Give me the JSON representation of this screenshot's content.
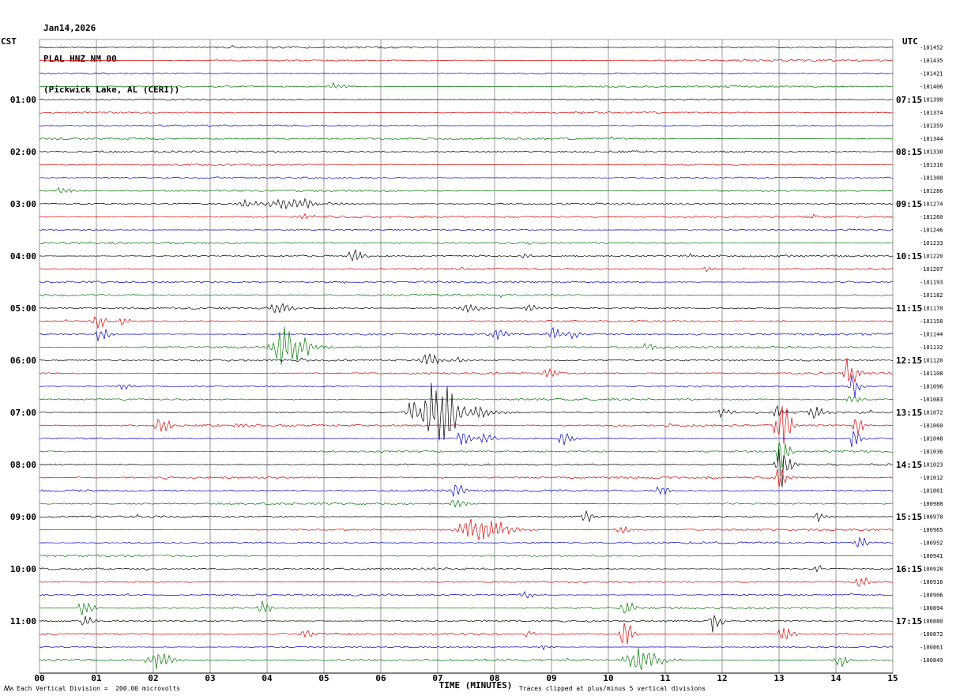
{
  "header": {
    "date": "Jan14,2026",
    "station": "PLAL HNZ NM 00",
    "location": "(Pickwick Lake, AL (CERI))"
  },
  "axes": {
    "left_header": "CST",
    "right_header": "UTC",
    "x_title": "TIME (MINUTES)"
  },
  "footer": {
    "scale_note": "Each Vertical Division =  200.00 microvolts",
    "clip_note": "Traces clipped at plus/minus 5 vertical divisions"
  },
  "colors": {
    "black": "#000000",
    "red": "#dd0000",
    "blue": "#0000cc",
    "green": "#007700",
    "grid": "#808080"
  },
  "chart_data": {
    "type": "line",
    "variant": "helicorder-seismogram",
    "title": "PLAL HNZ NM 00 — Jan14,2026 (Pickwick Lake, AL (CERI))",
    "xlabel": "TIME (MINUTES)",
    "x_range": [
      0,
      15
    ],
    "minutes_per_line": 15,
    "x_ticks": [
      "00",
      "01",
      "02",
      "03",
      "04",
      "05",
      "06",
      "07",
      "08",
      "09",
      "10",
      "11",
      "12",
      "13",
      "14",
      "15"
    ],
    "units_note": "Each Vertical Division =  200.00 microvolts",
    "clip_note": "Traces clipped at plus/minus 5 vertical divisions",
    "rows": [
      {
        "cst": "00:00",
        "color": "black",
        "offset": -101452
      },
      {
        "cst": "00:15",
        "color": "red",
        "offset": -101435
      },
      {
        "cst": "00:30",
        "color": "blue",
        "offset": -101421
      },
      {
        "cst": "00:45",
        "color": "green",
        "offset": -101406
      },
      {
        "cst": "01:00",
        "utc": "07:15",
        "color": "black",
        "offset": -101390
      },
      {
        "cst": "01:15",
        "color": "red",
        "offset": -101374
      },
      {
        "cst": "01:30",
        "color": "blue",
        "offset": -101359
      },
      {
        "cst": "01:45",
        "color": "green",
        "offset": -101344
      },
      {
        "cst": "02:00",
        "utc": "08:15",
        "color": "black",
        "offset": -101330
      },
      {
        "cst": "02:15",
        "color": "red",
        "offset": -101316
      },
      {
        "cst": "02:30",
        "color": "blue",
        "offset": -101300
      },
      {
        "cst": "02:45",
        "color": "green",
        "offset": -101286
      },
      {
        "cst": "03:00",
        "utc": "09:15",
        "color": "black",
        "offset": -101274
      },
      {
        "cst": "03:15",
        "color": "red",
        "offset": -101260
      },
      {
        "cst": "03:30",
        "color": "blue",
        "offset": -101246
      },
      {
        "cst": "03:45",
        "color": "green",
        "offset": -101233
      },
      {
        "cst": "04:00",
        "utc": "10:15",
        "color": "black",
        "offset": -101220
      },
      {
        "cst": "04:15",
        "color": "red",
        "offset": -101207
      },
      {
        "cst": "04:30",
        "color": "blue",
        "offset": -101193
      },
      {
        "cst": "04:45",
        "color": "green",
        "offset": -101182
      },
      {
        "cst": "05:00",
        "utc": "11:15",
        "color": "black",
        "offset": -101170
      },
      {
        "cst": "05:15",
        "color": "red",
        "offset": -101158
      },
      {
        "cst": "05:30",
        "color": "blue",
        "offset": -101144
      },
      {
        "cst": "05:45",
        "color": "green",
        "offset": -101132
      },
      {
        "cst": "06:00",
        "utc": "12:15",
        "color": "black",
        "offset": -101120
      },
      {
        "cst": "06:15",
        "color": "red",
        "offset": -101108
      },
      {
        "cst": "06:30",
        "color": "blue",
        "offset": -101096
      },
      {
        "cst": "06:45",
        "color": "green",
        "offset": -101083
      },
      {
        "cst": "07:00",
        "utc": "13:15",
        "color": "black",
        "offset": -101072
      },
      {
        "cst": "07:15",
        "color": "red",
        "offset": -101060
      },
      {
        "cst": "07:30",
        "color": "blue",
        "offset": -101048
      },
      {
        "cst": "07:45",
        "color": "green",
        "offset": -101036
      },
      {
        "cst": "08:00",
        "utc": "14:15",
        "color": "black",
        "offset": -101023
      },
      {
        "cst": "08:15",
        "color": "red",
        "offset": -101012
      },
      {
        "cst": "08:30",
        "color": "blue",
        "offset": -101001
      },
      {
        "cst": "08:45",
        "color": "green",
        "offset": -100988
      },
      {
        "cst": "09:00",
        "utc": "15:15",
        "color": "black",
        "offset": -100978
      },
      {
        "cst": "09:15",
        "color": "red",
        "offset": -100965
      },
      {
        "cst": "09:30",
        "color": "blue",
        "offset": -100952
      },
      {
        "cst": "09:45",
        "color": "green",
        "offset": -100941
      },
      {
        "cst": "10:00",
        "utc": "16:15",
        "color": "black",
        "offset": -100928
      },
      {
        "cst": "10:15",
        "color": "red",
        "offset": -100916
      },
      {
        "cst": "10:30",
        "color": "blue",
        "offset": -100906
      },
      {
        "cst": "10:45",
        "color": "green",
        "offset": -100894
      },
      {
        "cst": "11:00",
        "utc": "17:15",
        "color": "black",
        "offset": -100880
      },
      {
        "cst": "11:15",
        "color": "red",
        "offset": -100872
      },
      {
        "cst": "11:30",
        "color": "blue",
        "offset": -100861
      },
      {
        "cst": "11:45",
        "color": "green",
        "offset": -100849
      }
    ],
    "events": [
      {
        "row": 3,
        "min": 5.15,
        "amp": 4,
        "w": 0.1
      },
      {
        "row": 11,
        "min": 0.35,
        "amp": 3,
        "w": 0.08
      },
      {
        "row": 12,
        "min": 3.6,
        "amp": 4,
        "w": 0.12
      },
      {
        "row": 12,
        "min": 4.3,
        "amp": 6,
        "w": 0.3
      },
      {
        "row": 12,
        "min": 4.95,
        "amp": 4,
        "w": 0.1
      },
      {
        "row": 13,
        "min": 4.6,
        "amp": 3,
        "w": 0.1
      },
      {
        "row": 16,
        "min": 5.5,
        "amp": 11,
        "w": 0.06
      },
      {
        "row": 16,
        "min": 8.5,
        "amp": 3,
        "w": 0.06
      },
      {
        "row": 17,
        "min": 11.7,
        "amp": 3,
        "w": 0.06
      },
      {
        "row": 20,
        "min": 4.15,
        "amp": 7,
        "w": 0.1
      },
      {
        "row": 20,
        "min": 7.45,
        "amp": 5,
        "w": 0.12
      },
      {
        "row": 20,
        "min": 8.6,
        "amp": 4,
        "w": 0.1
      },
      {
        "row": 21,
        "min": 1.0,
        "amp": 8,
        "w": 0.07
      },
      {
        "row": 21,
        "min": 1.45,
        "amp": 5,
        "w": 0.06
      },
      {
        "row": 22,
        "min": 1.05,
        "amp": 9,
        "w": 0.07
      },
      {
        "row": 22,
        "min": 8.0,
        "amp": 9,
        "w": 0.08
      },
      {
        "row": 22,
        "min": 9.0,
        "amp": 8,
        "w": 0.08
      },
      {
        "row": 22,
        "min": 9.35,
        "amp": 5,
        "w": 0.06
      },
      {
        "row": 23,
        "min": 4.25,
        "amp": 22,
        "w": 0.18
      },
      {
        "row": 23,
        "min": 10.7,
        "amp": 6,
        "w": 0.08
      },
      {
        "row": 24,
        "min": 6.8,
        "amp": 7,
        "w": 0.1
      },
      {
        "row": 24,
        "min": 7.3,
        "amp": 4,
        "w": 0.08
      },
      {
        "row": 25,
        "min": 8.9,
        "amp": 7,
        "w": 0.07
      },
      {
        "row": 25,
        "min": 14.2,
        "amp": 16,
        "w": 0.07
      },
      {
        "row": 26,
        "min": 1.45,
        "amp": 5,
        "w": 0.06
      },
      {
        "row": 26,
        "min": 14.3,
        "amp": 18,
        "w": 0.05
      },
      {
        "row": 27,
        "min": 14.25,
        "amp": 6,
        "w": 0.06
      },
      {
        "row": 28,
        "min": 6.55,
        "amp": 12,
        "w": 0.1
      },
      {
        "row": 28,
        "min": 6.9,
        "amp": 30,
        "w": 0.13
      },
      {
        "row": 28,
        "min": 7.1,
        "amp": 22,
        "w": 0.12
      },
      {
        "row": 28,
        "min": 7.4,
        "amp": 9,
        "w": 0.2
      },
      {
        "row": 28,
        "min": 12.0,
        "amp": 6,
        "w": 0.07
      },
      {
        "row": 28,
        "min": 12.95,
        "amp": 9,
        "w": 0.07
      },
      {
        "row": 28,
        "min": 13.6,
        "amp": 7,
        "w": 0.07
      },
      {
        "row": 29,
        "min": 2.1,
        "amp": 10,
        "w": 0.08
      },
      {
        "row": 29,
        "min": 3.5,
        "amp": 5,
        "w": 0.08
      },
      {
        "row": 29,
        "min": 13.0,
        "amp": 26,
        "w": 0.08
      },
      {
        "row": 29,
        "min": 14.35,
        "amp": 12,
        "w": 0.06
      },
      {
        "row": 30,
        "min": 7.4,
        "amp": 8,
        "w": 0.07
      },
      {
        "row": 30,
        "min": 7.8,
        "amp": 6,
        "w": 0.07
      },
      {
        "row": 30,
        "min": 9.2,
        "amp": 8,
        "w": 0.07
      },
      {
        "row": 30,
        "min": 14.3,
        "amp": 12,
        "w": 0.06
      },
      {
        "row": 31,
        "min": 13.0,
        "amp": 20,
        "w": 0.06
      },
      {
        "row": 32,
        "min": 13.0,
        "amp": 26,
        "w": 0.07
      },
      {
        "row": 33,
        "min": 13.0,
        "amp": 14,
        "w": 0.06
      },
      {
        "row": 34,
        "min": 7.3,
        "amp": 8,
        "w": 0.07
      },
      {
        "row": 34,
        "min": 10.9,
        "amp": 6,
        "w": 0.07
      },
      {
        "row": 35,
        "min": 7.3,
        "amp": 5,
        "w": 0.08
      },
      {
        "row": 36,
        "min": 9.6,
        "amp": 8,
        "w": 0.06
      },
      {
        "row": 36,
        "min": 13.7,
        "amp": 7,
        "w": 0.06
      },
      {
        "row": 37,
        "min": 7.6,
        "amp": 12,
        "w": 0.25
      },
      {
        "row": 37,
        "min": 8.05,
        "amp": 8,
        "w": 0.1
      },
      {
        "row": 37,
        "min": 10.2,
        "amp": 6,
        "w": 0.07
      },
      {
        "row": 38,
        "min": 14.4,
        "amp": 8,
        "w": 0.06
      },
      {
        "row": 40,
        "min": 13.65,
        "amp": 4,
        "w": 0.06
      },
      {
        "row": 41,
        "min": 14.4,
        "amp": 8,
        "w": 0.06
      },
      {
        "row": 42,
        "min": 8.5,
        "amp": 6,
        "w": 0.06
      },
      {
        "row": 43,
        "min": 0.76,
        "amp": 10,
        "w": 0.07
      },
      {
        "row": 43,
        "min": 3.9,
        "amp": 7,
        "w": 0.07
      },
      {
        "row": 43,
        "min": 10.28,
        "amp": 12,
        "w": 0.06
      },
      {
        "row": 44,
        "min": 0.8,
        "amp": 8,
        "w": 0.06
      },
      {
        "row": 44,
        "min": 11.85,
        "amp": 16,
        "w": 0.05
      },
      {
        "row": 45,
        "min": 4.65,
        "amp": 5,
        "w": 0.06
      },
      {
        "row": 45,
        "min": 8.58,
        "amp": 4,
        "w": 0.06
      },
      {
        "row": 45,
        "min": 10.28,
        "amp": 20,
        "w": 0.07
      },
      {
        "row": 45,
        "min": 13.05,
        "amp": 10,
        "w": 0.07
      },
      {
        "row": 46,
        "min": 8.85,
        "amp": 3,
        "w": 0.06
      },
      {
        "row": 47,
        "min": 2.0,
        "amp": 10,
        "w": 0.12
      },
      {
        "row": 47,
        "min": 10.45,
        "amp": 12,
        "w": 0.2
      },
      {
        "row": 47,
        "min": 14.05,
        "amp": 8,
        "w": 0.08
      }
    ]
  }
}
